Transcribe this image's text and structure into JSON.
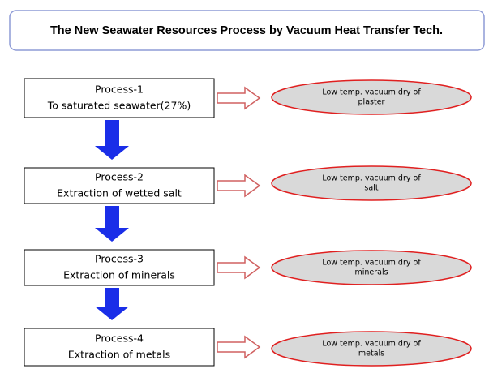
{
  "header": {
    "title": "The New Seawater Resources Process by Vacuum Heat Transfer Tech."
  },
  "processes": [
    {
      "name": "Process-1",
      "description": "To saturated seawater(27%)",
      "result": [
        "Low temp. vacuum dry of",
        "plaster"
      ]
    },
    {
      "name": "Process-2",
      "description": "Extraction of wetted salt",
      "result": [
        "Low temp. vacuum dry of",
        "salt"
      ]
    },
    {
      "name": "Process-3",
      "description": "Extraction of minerals",
      "result": [
        "Low temp. vacuum dry of",
        "minerals"
      ]
    },
    {
      "name": "Process-4",
      "description": "Extraction of metals",
      "result": [
        "Low temp. vacuum dry of",
        "metals"
      ]
    }
  ]
}
